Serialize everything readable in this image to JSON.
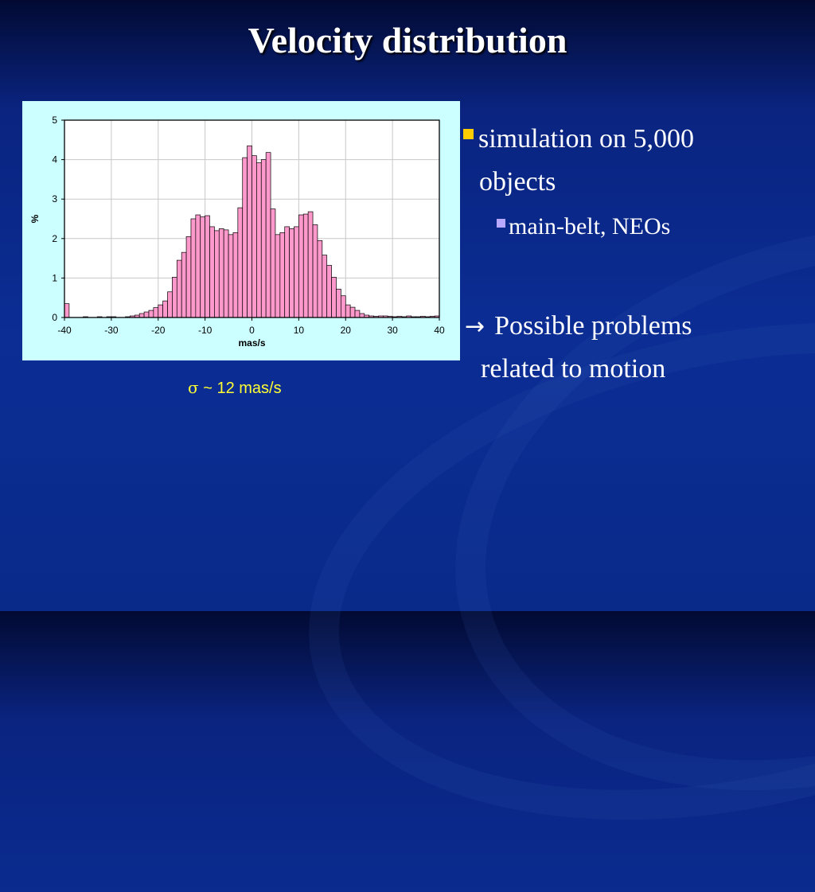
{
  "slide": {
    "title": "Velocity distribution",
    "sigma_note": {
      "symbol": "σ",
      "text": " ~ 12 mas/s"
    },
    "bullets": {
      "b1_line1": "simulation on 5,000",
      "b1_line2": "objects",
      "sub1": "main-belt, NEOs",
      "b2_line1": "Possible problems",
      "b2_line2": "related to motion",
      "arrow_glyph": "→"
    }
  },
  "colors": {
    "bar_fill": "#ff99cc",
    "bar_stroke": "#000000",
    "plot_bg": "#ffffff",
    "panel_bg": "#ccffff",
    "bullet_main": "#ffcc00",
    "bullet_sub": "#b9a8ff",
    "note": "#ffff33"
  },
  "chart_data": {
    "type": "bar",
    "title": "",
    "xlabel": "mas/s",
    "ylabel": "%",
    "xlim": [
      -40,
      40
    ],
    "ylim": [
      0,
      5
    ],
    "xticks": [
      -40,
      -30,
      -20,
      -10,
      0,
      10,
      20,
      30,
      40
    ],
    "yticks": [
      0,
      1,
      2,
      3,
      4,
      5
    ],
    "grid": true,
    "bin_width": 1,
    "bin_starts": [
      -40,
      -39,
      -38,
      -37,
      -36,
      -35,
      -34,
      -33,
      -32,
      -31,
      -30,
      -29,
      -28,
      -27,
      -26,
      -25,
      -24,
      -23,
      -22,
      -21,
      -20,
      -19,
      -18,
      -17,
      -16,
      -15,
      -14,
      -13,
      -12,
      -11,
      -10,
      -9,
      -8,
      -7,
      -6,
      -5,
      -4,
      -3,
      -2,
      -1,
      0,
      1,
      2,
      3,
      4,
      5,
      6,
      7,
      8,
      9,
      10,
      11,
      12,
      13,
      14,
      15,
      16,
      17,
      18,
      19,
      20,
      21,
      22,
      23,
      24,
      25,
      26,
      27,
      28,
      29,
      30,
      31,
      32,
      33,
      34,
      35,
      36,
      37,
      38,
      39
    ],
    "values": [
      0.35,
      0.0,
      0.0,
      0.0,
      0.02,
      0.0,
      0.0,
      0.02,
      0.0,
      0.02,
      0.02,
      0.0,
      0.0,
      0.02,
      0.04,
      0.06,
      0.1,
      0.14,
      0.18,
      0.25,
      0.32,
      0.42,
      0.65,
      1.02,
      1.45,
      1.65,
      2.05,
      2.5,
      2.6,
      2.55,
      2.58,
      2.3,
      2.2,
      2.25,
      2.22,
      2.1,
      2.15,
      2.78,
      4.05,
      4.35,
      4.1,
      3.92,
      4.0,
      4.18,
      2.75,
      2.1,
      2.15,
      2.3,
      2.25,
      2.3,
      2.6,
      2.62,
      2.68,
      2.35,
      1.95,
      1.58,
      1.32,
      1.02,
      0.72,
      0.55,
      0.32,
      0.26,
      0.18,
      0.1,
      0.06,
      0.04,
      0.03,
      0.04,
      0.04,
      0.03,
      0.02,
      0.03,
      0.02,
      0.04,
      0.02,
      0.02,
      0.03,
      0.02,
      0.03,
      0.04
    ]
  }
}
